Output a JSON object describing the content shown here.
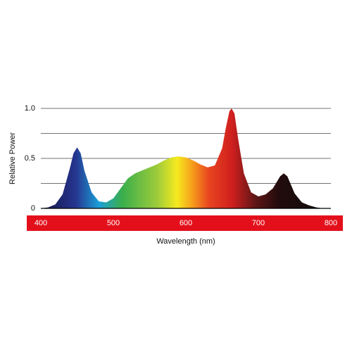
{
  "chart_data": {
    "type": "area",
    "x_label": "Wavelength (nm)",
    "y_label": "Relative Power",
    "x": [
      400,
      410,
      420,
      430,
      440,
      445,
      450,
      455,
      460,
      470,
      480,
      490,
      500,
      510,
      520,
      530,
      540,
      550,
      560,
      570,
      580,
      590,
      600,
      610,
      620,
      630,
      640,
      650,
      655,
      660,
      663,
      667,
      672,
      680,
      690,
      700,
      710,
      720,
      730,
      735,
      740,
      750,
      760,
      770,
      780,
      790,
      800
    ],
    "values": [
      0,
      0.01,
      0.04,
      0.14,
      0.4,
      0.55,
      0.61,
      0.55,
      0.38,
      0.16,
      0.07,
      0.06,
      0.1,
      0.2,
      0.3,
      0.35,
      0.38,
      0.41,
      0.44,
      0.48,
      0.51,
      0.52,
      0.51,
      0.48,
      0.44,
      0.41,
      0.43,
      0.6,
      0.8,
      0.97,
      1.0,
      0.95,
      0.7,
      0.35,
      0.16,
      0.12,
      0.14,
      0.2,
      0.32,
      0.35,
      0.32,
      0.15,
      0.06,
      0.03,
      0.01,
      0,
      0
    ],
    "xlim": [
      400,
      800
    ],
    "xticks": [
      400,
      500,
      600,
      700,
      800
    ],
    "ylim": [
      0,
      1
    ],
    "yticks": [
      0,
      0.5,
      {
        "value": 1,
        "label": "1.0"
      }
    ],
    "ygrid": [
      0.25,
      0.5,
      0.75,
      1
    ],
    "axis_band_color": "#e3101b"
  }
}
